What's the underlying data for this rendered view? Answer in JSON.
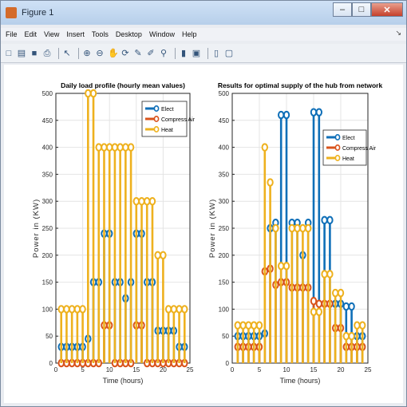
{
  "window": {
    "title": "Figure 1",
    "controls": {
      "minimize": "–",
      "maximize": "□",
      "close": "✕"
    }
  },
  "menubar": {
    "items": [
      "File",
      "Edit",
      "View",
      "Insert",
      "Tools",
      "Desktop",
      "Window",
      "Help"
    ],
    "more_arrow": "↘"
  },
  "toolbar": {
    "buttons": [
      {
        "name": "new-figure-icon",
        "glyph": "□"
      },
      {
        "name": "open-file-icon",
        "glyph": "▤"
      },
      {
        "name": "save-icon",
        "glyph": "■"
      },
      {
        "name": "print-icon",
        "glyph": "⎙"
      },
      {
        "sep": true
      },
      {
        "name": "edit-plot-icon",
        "glyph": "↖"
      },
      {
        "sep": true
      },
      {
        "name": "zoom-in-icon",
        "glyph": "⊕"
      },
      {
        "name": "zoom-out-icon",
        "glyph": "⊖"
      },
      {
        "name": "pan-icon",
        "glyph": "✋"
      },
      {
        "name": "rotate-icon",
        "glyph": "⟳"
      },
      {
        "name": "data-cursor-icon",
        "glyph": "✎"
      },
      {
        "name": "brush-icon",
        "glyph": "✐"
      },
      {
        "name": "link-icon",
        "glyph": "⚲"
      },
      {
        "sep": true
      },
      {
        "name": "colorbar-icon",
        "glyph": "▮"
      },
      {
        "name": "legend-icon",
        "glyph": "▣"
      },
      {
        "sep": true
      },
      {
        "name": "hide-tools-icon",
        "glyph": "▯"
      },
      {
        "name": "dock-icon",
        "glyph": "▢"
      }
    ]
  },
  "colors": {
    "elect": "#0f6fb8",
    "compress_air": "#d9531b",
    "heat": "#eeb11e"
  },
  "chart_data": [
    {
      "type": "stem",
      "title": "Daily load profile (hourly mean values)",
      "xlabel": "Time (hours)",
      "ylabel": "Power in (KW)",
      "xlim": [
        0,
        25
      ],
      "ylim": [
        0,
        500
      ],
      "xticks": [
        0,
        5,
        10,
        15,
        20,
        25
      ],
      "yticks": [
        0,
        50,
        100,
        150,
        200,
        250,
        300,
        350,
        400,
        450,
        500
      ],
      "grid": true,
      "legend_position": "top-right",
      "x": [
        1,
        2,
        3,
        4,
        5,
        6,
        7,
        8,
        9,
        10,
        11,
        12,
        13,
        14,
        15,
        16,
        17,
        18,
        19,
        20,
        21,
        22,
        23,
        24
      ],
      "series": [
        {
          "name": "Elect",
          "values": [
            30,
            30,
            30,
            30,
            30,
            45,
            150,
            150,
            240,
            240,
            150,
            150,
            120,
            150,
            240,
            240,
            150,
            150,
            60,
            60,
            60,
            60,
            30,
            30
          ]
        },
        {
          "name": "Compress Air",
          "values": [
            0,
            0,
            0,
            0,
            0,
            0,
            0,
            0,
            70,
            70,
            0,
            0,
            0,
            0,
            70,
            70,
            0,
            0,
            0,
            0,
            0,
            0,
            0,
            0
          ]
        },
        {
          "name": "Heat",
          "values": [
            100,
            100,
            100,
            100,
            100,
            500,
            500,
            400,
            400,
            400,
            400,
            400,
            400,
            400,
            300,
            300,
            300,
            300,
            200,
            200,
            100,
            100,
            100,
            100
          ]
        }
      ]
    },
    {
      "type": "stem",
      "title": "Results for optimal supply of the hub from network",
      "xlabel": "Time (hours)",
      "ylabel": "Power in (KW)",
      "xlim": [
        0,
        25
      ],
      "ylim": [
        0,
        500
      ],
      "xticks": [
        0,
        5,
        10,
        15,
        20,
        25
      ],
      "yticks": [
        0,
        50,
        100,
        150,
        200,
        250,
        300,
        350,
        400,
        450,
        500
      ],
      "grid": true,
      "legend_position": "top-right",
      "x": [
        1,
        2,
        3,
        4,
        5,
        6,
        7,
        8,
        9,
        10,
        11,
        12,
        13,
        14,
        15,
        16,
        17,
        18,
        19,
        20,
        21,
        22,
        23,
        24
      ],
      "series": [
        {
          "name": "Elect",
          "values": [
            50,
            50,
            50,
            50,
            50,
            55,
            250,
            260,
            460,
            460,
            260,
            260,
            200,
            260,
            465,
            465,
            265,
            265,
            110,
            110,
            105,
            105,
            50,
            50
          ]
        },
        {
          "name": "Compress Air",
          "values": [
            30,
            30,
            30,
            30,
            30,
            170,
            175,
            145,
            150,
            150,
            140,
            140,
            140,
            140,
            115,
            110,
            110,
            110,
            65,
            65,
            30,
            30,
            30,
            30
          ]
        },
        {
          "name": "Heat",
          "values": [
            70,
            70,
            70,
            70,
            70,
            400,
            335,
            250,
            180,
            180,
            250,
            250,
            250,
            250,
            95,
            95,
            165,
            165,
            130,
            130,
            50,
            50,
            70,
            70
          ]
        }
      ]
    }
  ]
}
